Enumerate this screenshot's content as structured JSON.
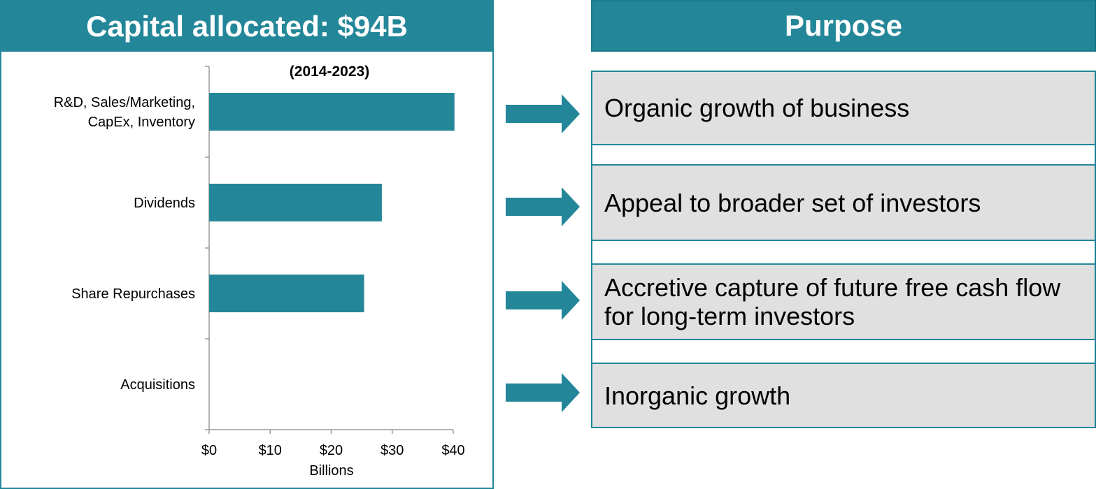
{
  "left_panel": {
    "title": "Capital allocated: $94B"
  },
  "chart_data": {
    "type": "bar",
    "orientation": "horizontal",
    "title": "(2014-2023)",
    "categories": [
      "R&D, Sales/Marketing, CapEx, Inventory",
      "Dividends",
      "Share Repurchases",
      "Acquisitions"
    ],
    "category_lines": [
      [
        "R&D, Sales/Marketing,",
        "CapEx, Inventory"
      ],
      [
        "Dividends"
      ],
      [
        "Share Repurchases"
      ],
      [
        "Acquisitions"
      ]
    ],
    "values": [
      40.2,
      28.3,
      25.4,
      0
    ],
    "xlabel": "Billions",
    "xlim": [
      0,
      40
    ],
    "xticks": [
      0,
      10,
      20,
      30,
      40
    ],
    "xtick_labels": [
      "$0",
      "$10",
      "$20",
      "$30",
      "$40"
    ],
    "color": "#238799",
    "grid": false
  },
  "right_panel": {
    "title": "Purpose",
    "items": [
      {
        "lines": [
          "Organic growth of business"
        ]
      },
      {
        "lines": [
          "Appeal to broader set of investors"
        ]
      },
      {
        "lines": [
          "Accretive capture of future free cash flow",
          "for long-term investors"
        ]
      },
      {
        "lines": [
          "Inorganic growth"
        ]
      }
    ]
  },
  "colors": {
    "accent": "#238799",
    "box_fill": "#e0e0e0"
  }
}
